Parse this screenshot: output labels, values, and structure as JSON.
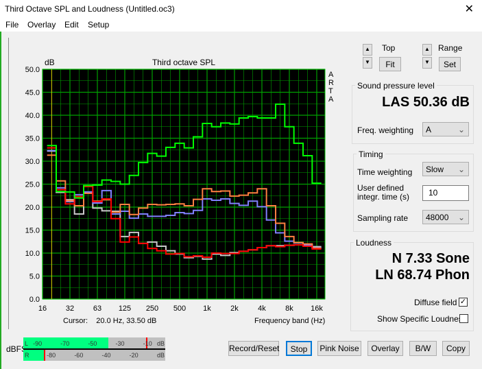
{
  "window": {
    "title": "Third Octave SPL and Loudness (Untitled.oc3)",
    "close_icon": "close-icon"
  },
  "menu": [
    "File",
    "Overlay",
    "Edit",
    "Setup"
  ],
  "controls": {
    "top_label": "Top",
    "fit_label": "Fit",
    "range_label": "Range",
    "set_label": "Set"
  },
  "spl": {
    "group_label": "Sound pressure level",
    "value": "LAS 50.36 dB",
    "freq_weighting_label": "Freq. weighting",
    "freq_weighting": "A"
  },
  "timing": {
    "group_label": "Timing",
    "time_weighting_label": "Time weighting",
    "time_weighting": "Slow",
    "integr_label_1": "User defined",
    "integr_label_2": "integr. time (s)",
    "integr_value": "10",
    "sampling_label": "Sampling rate",
    "sampling_rate": "48000"
  },
  "loudness": {
    "group_label": "Loudness",
    "n": "N 7.33 Sone",
    "ln": "LN 68.74 Phon",
    "diffuse_label": "Diffuse field",
    "diffuse_checked": true,
    "specific_label": "Show Specific Loudness",
    "specific_checked": false
  },
  "cursor": "Cursor:    20.0 Hz, 33.50 dB",
  "meter": {
    "label": "dBFS",
    "L_label": "L",
    "R_label": "R",
    "L_ticks": [
      "-90",
      "-70",
      "-50",
      "-30",
      "-10"
    ],
    "R_ticks": [
      "-80",
      "-60",
      "-40",
      "-20"
    ],
    "unit": "dB",
    "L_level_dbfs": -38,
    "R_level_dbfs": -85,
    "L_peak_dbfs": -11,
    "R_peak_dbfs": -85
  },
  "buttons": [
    "Record/Reset",
    "Stop",
    "Pink Noise",
    "Overlay",
    "B/W",
    "Copy"
  ],
  "side_text": [
    "A",
    "R",
    "T",
    "A"
  ],
  "chart_data": {
    "type": "line",
    "title": "Third octave SPL",
    "ylabel": "dB",
    "xlabel": "Frequency band (Hz)",
    "ylim": [
      0,
      50
    ],
    "yticks": [
      "0.0",
      "5.0",
      "10.0",
      "15.0",
      "20.0",
      "25.0",
      "30.0",
      "35.0",
      "40.0",
      "45.0",
      "50.0"
    ],
    "xticks": [
      "16",
      "32",
      "63",
      "125",
      "250",
      "500",
      "1k",
      "2k",
      "4k",
      "8k",
      "16k"
    ],
    "grid": true,
    "background": "#000000",
    "grid_color": "#00a000",
    "bands": [
      "20",
      "25",
      "31.5",
      "40",
      "50",
      "63",
      "80",
      "100",
      "125",
      "160",
      "200",
      "250",
      "315",
      "400",
      "500",
      "630",
      "800",
      "1k",
      "1.25k",
      "1.6k",
      "2k",
      "2.5k",
      "3.15k",
      "4k",
      "5k",
      "6.3k",
      "8k",
      "10k",
      "12.5k",
      "16k"
    ],
    "series": [
      {
        "color": "#c8c8c8",
        "values": [
          32.2,
          23.2,
          21.6,
          18.5,
          23.3,
          19.8,
          19.2,
          19.1,
          13.6,
          14.5,
          12.1,
          12.4,
          11.5,
          10.5,
          9.8,
          9.0,
          9.3,
          8.7,
          9.8,
          9.5,
          10.1,
          10.4,
          10.7,
          11.2,
          11.6,
          11.6,
          11.7,
          11.8,
          11.7,
          11.4
        ]
      },
      {
        "color": "#8080ff",
        "values": [
          32.3,
          24.2,
          21.2,
          22.7,
          23.3,
          20.9,
          23.6,
          18.5,
          19.1,
          17.6,
          18.5,
          18.0,
          18.0,
          18.2,
          18.8,
          18.6,
          19.3,
          21.8,
          21.5,
          21.8,
          20.8,
          20.4,
          21.3,
          20.1,
          17.2,
          14.4,
          12.6,
          12.2,
          11.8,
          11.2
        ]
      },
      {
        "color": "#ff8040",
        "values": [
          31.3,
          25.7,
          21.4,
          20.3,
          23.0,
          21.3,
          21.6,
          18.9,
          20.6,
          18.4,
          19.8,
          20.6,
          20.5,
          20.6,
          20.7,
          20.3,
          21.7,
          24.0,
          23.4,
          23.5,
          22.4,
          22.6,
          23.1,
          24.0,
          20.3,
          16.5,
          13.6,
          12.3,
          12.0,
          11.1
        ]
      },
      {
        "color": "#ff0000",
        "values": [
          32.9,
          23.8,
          20.7,
          22.3,
          24.5,
          21.2,
          21.8,
          17.5,
          12.4,
          13.5,
          12.1,
          11.0,
          10.5,
          9.8,
          9.9,
          9.2,
          9.4,
          9.1,
          10.0,
          9.9,
          9.9,
          10.4,
          10.7,
          11.2,
          11.6,
          11.4,
          11.7,
          11.8,
          11.5,
          10.9
        ]
      },
      {
        "color": "#00ff00",
        "values": [
          33.4,
          23.4,
          23.3,
          22.0,
          24.7,
          24.8,
          25.9,
          25.6,
          25.0,
          26.9,
          29.7,
          31.7,
          31.1,
          33.0,
          33.9,
          32.9,
          35.3,
          38.2,
          37.5,
          38.3,
          38.1,
          39.4,
          39.7,
          39.4,
          39.4,
          42.4,
          37.5,
          33.9,
          31.2,
          25.2
        ]
      }
    ],
    "cursor_band": "20"
  }
}
